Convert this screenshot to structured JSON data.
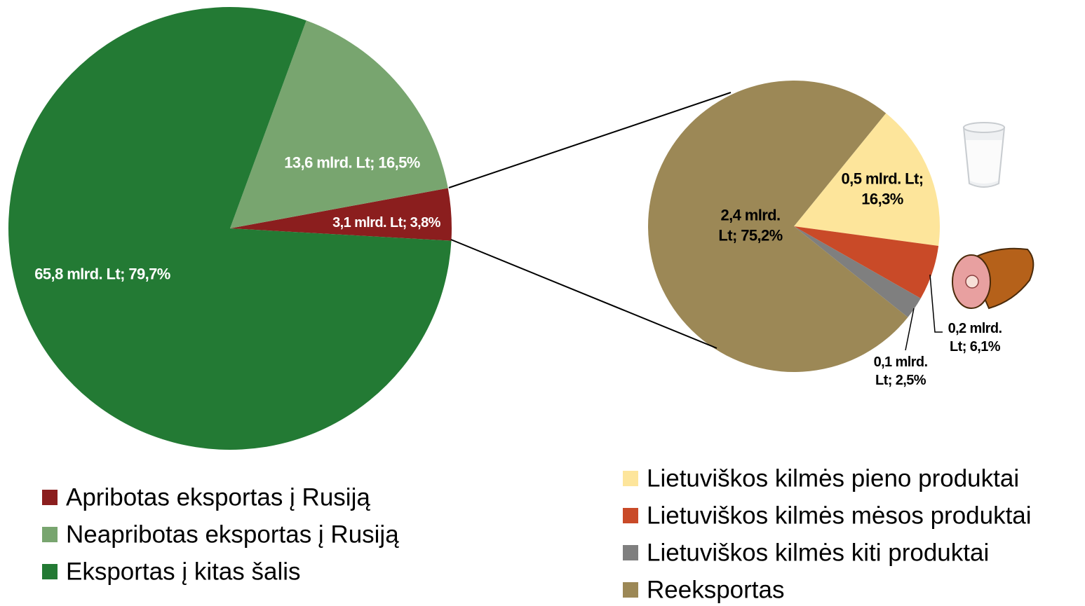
{
  "chart_data": [
    {
      "type": "pie",
      "categories": [
        "Apribotas eksportas į Rusiją",
        "Neapribotas eksportas į Rusiją",
        "Eksportas į kitas šalis"
      ],
      "values": [
        3.8,
        16.5,
        79.7
      ],
      "value_labels": [
        "3,1 mlrd. Lt; 3,8%",
        "13,6 mlrd. Lt; 16,5%",
        "65,8 mlrd. Lt; 79,7%"
      ],
      "colors": [
        "#8b1e1e",
        "#78a56f",
        "#237a34"
      ]
    },
    {
      "type": "pie",
      "categories": [
        "Lietuviškos kilmės pieno produktai",
        "Lietuviškos kilmės mėsos produktai",
        "Lietuviškos kilmės kiti produktai",
        "Reeksportas"
      ],
      "values": [
        16.3,
        6.1,
        2.5,
        75.2
      ],
      "value_labels": [
        "0,5 mlrd. Lt; 16,3%",
        "0,2 mlrd. Lt; 6,1%",
        "0,1 mlrd. Lt; 2,5%",
        "2,4 mlrd. Lt; 75,2%"
      ],
      "colors": [
        "#fde59b",
        "#c94a28",
        "#7f7f7f",
        "#9c8856"
      ]
    }
  ]
}
